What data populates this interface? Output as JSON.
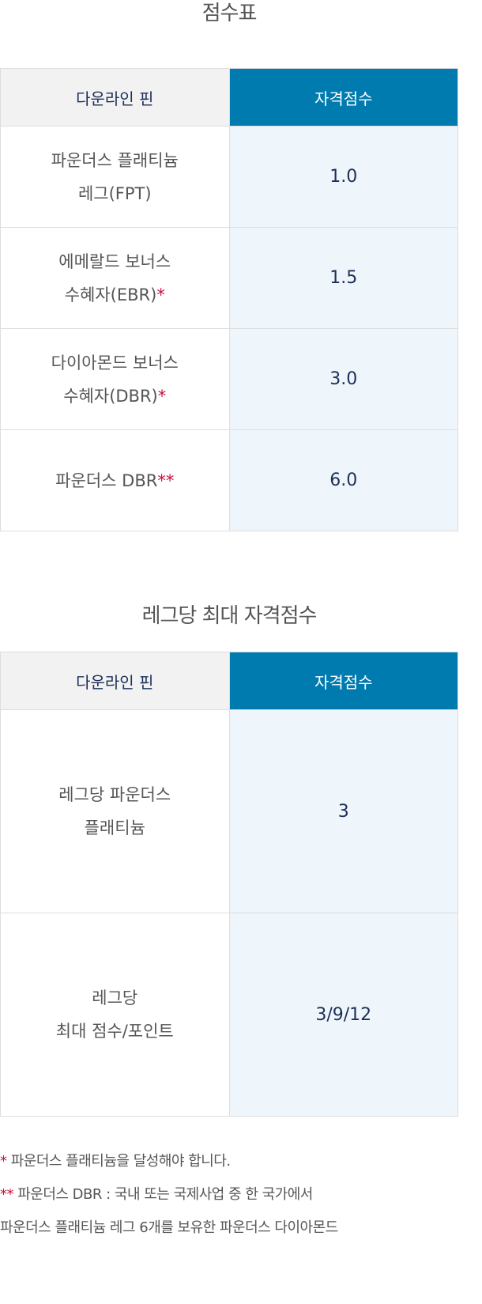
{
  "scoreboard": {
    "title": "점수표",
    "headers": {
      "col1": "다운라인 핀",
      "col2": "자격점수"
    },
    "rows": [
      {
        "line1": "파운더스 플래티늄",
        "line2": "레그(FPT)",
        "star": "",
        "score": "1.0"
      },
      {
        "line1": "에메랄드 보너스",
        "line2": "수혜자(EBR)",
        "star": "*",
        "score": "1.5"
      },
      {
        "line1": "다이아몬드 보너스",
        "line2": "수혜자(DBR)",
        "star": "*",
        "score": "3.0"
      },
      {
        "line1": "파운더스 DBR",
        "line2": "",
        "star": "**",
        "score": "6.0"
      }
    ]
  },
  "leg_max": {
    "title": "레그당 최대 자격점수",
    "headers": {
      "col1": "다운라인 핀",
      "col2": "자격점수"
    },
    "rows": [
      {
        "line1": "레그당 파운더스",
        "line2": "플래티늄",
        "score": "3"
      },
      {
        "line1": "레그당",
        "line2": "최대 점수/포인트",
        "score": "3/9/12"
      }
    ]
  },
  "notes": {
    "note1_star": "*",
    "note1_text": " 파운더스 플래티늄을 달성해야 합니다.",
    "note2_star": "**",
    "note2_text": " 파운더스 DBR : 국내 또는 국제사업 중 한 국가에서",
    "note2_cont": "파운더스 플래티늄 레그 6개를 보유한 파운더스 다이아몬드"
  }
}
